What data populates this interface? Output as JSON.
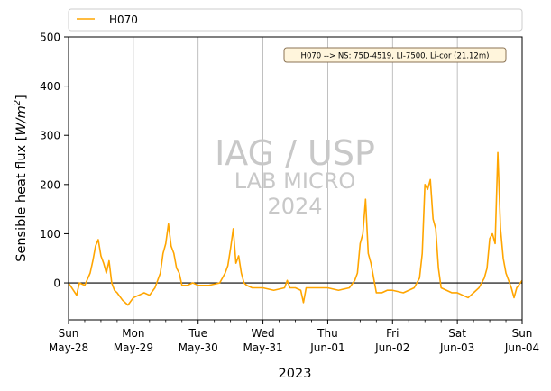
{
  "chart_data": {
    "type": "line",
    "xlabel": "2023",
    "ylabel": "Sensible heat flux [W/m²]",
    "ylabel_parts": {
      "text": "Sensible heat flux [",
      "unit_base": "W/m",
      "unit_exp": "2",
      "close": "]"
    },
    "ylim": [
      -75,
      500
    ],
    "yticks": [
      0,
      100,
      200,
      300,
      400,
      500
    ],
    "xlim": [
      "2023-05-28",
      "2023-06-04"
    ],
    "xticks": [
      {
        "day": "Sun",
        "date": "May-28"
      },
      {
        "day": "Mon",
        "date": "May-29"
      },
      {
        "day": "Tue",
        "date": "May-30"
      },
      {
        "day": "Wed",
        "date": "May-31"
      },
      {
        "day": "Thu",
        "date": "Jun-01"
      },
      {
        "day": "Fri",
        "date": "Jun-02"
      },
      {
        "day": "Sat",
        "date": "Jun-03"
      },
      {
        "day": "Sun",
        "date": "Jun-04"
      }
    ],
    "grid": "vertical",
    "legend_placement": "top",
    "annotation": "H070 --> NS: 75D-4519, LI-7500, Li-cor (21.12m)",
    "watermark": [
      "IAG / USP",
      "LAB MICRO",
      "2024"
    ],
    "colors": {
      "series": "#FFA500",
      "zero_line": "#000000",
      "grid": "#b0b0b0",
      "annot_bg": "#FFF5DC",
      "annot_border": "#8B7355",
      "watermark": "#c8c8c8"
    },
    "series": [
      {
        "name": "H070",
        "x": [
          "2023-05-28 00:00",
          "2023-05-28 03:00",
          "2023-05-28 04:00",
          "2023-05-28 06:00",
          "2023-05-28 08:00",
          "2023-05-28 09:00",
          "2023-05-28 10:00",
          "2023-05-28 11:00",
          "2023-05-28 12:00",
          "2023-05-28 13:00",
          "2023-05-28 14:00",
          "2023-05-28 15:00",
          "2023-05-28 16:00",
          "2023-05-28 17:00",
          "2023-05-28 18:00",
          "2023-05-28 20:00",
          "2023-05-28 22:00",
          "2023-05-29 00:00",
          "2023-05-29 02:00",
          "2023-05-29 04:00",
          "2023-05-29 06:00",
          "2023-05-29 08:00",
          "2023-05-29 10:00",
          "2023-05-29 11:00",
          "2023-05-29 12:00",
          "2023-05-29 13:00",
          "2023-05-29 14:00",
          "2023-05-29 15:00",
          "2023-05-29 16:00",
          "2023-05-29 17:00",
          "2023-05-29 18:00",
          "2023-05-29 20:00",
          "2023-05-29 22:00",
          "2023-05-30 00:00",
          "2023-05-30 04:00",
          "2023-05-30 08:00",
          "2023-05-30 10:00",
          "2023-05-30 11:00",
          "2023-05-30 12:00",
          "2023-05-30 13:00",
          "2023-05-30 14:00",
          "2023-05-30 15:00",
          "2023-05-30 16:00",
          "2023-05-30 17:00",
          "2023-05-30 18:00",
          "2023-05-30 20:00",
          "2023-05-30 22:00",
          "2023-05-31 00:00",
          "2023-05-31 04:00",
          "2023-05-31 08:00",
          "2023-05-31 09:00",
          "2023-05-31 10:00",
          "2023-05-31 12:00",
          "2023-05-31 14:00",
          "2023-05-31 15:00",
          "2023-05-31 16:00",
          "2023-05-31 18:00",
          "2023-05-31 20:00",
          "2023-05-31 22:00",
          "2023-06-01 00:00",
          "2023-06-01 04:00",
          "2023-06-01 08:00",
          "2023-06-01 10:00",
          "2023-06-01 11:00",
          "2023-06-01 12:00",
          "2023-06-01 13:00",
          "2023-06-01 14:00",
          "2023-06-01 15:00",
          "2023-06-01 16:00",
          "2023-06-01 17:00",
          "2023-06-01 18:00",
          "2023-06-01 20:00",
          "2023-06-01 22:00",
          "2023-06-02 00:00",
          "2023-06-02 04:00",
          "2023-06-02 08:00",
          "2023-06-02 10:00",
          "2023-06-02 11:00",
          "2023-06-02 12:00",
          "2023-06-02 13:00",
          "2023-06-02 14:00",
          "2023-06-02 15:00",
          "2023-06-02 16:00",
          "2023-06-02 17:00",
          "2023-06-02 18:00",
          "2023-06-02 20:00",
          "2023-06-02 22:00",
          "2023-06-03 00:00",
          "2023-06-03 04:00",
          "2023-06-03 08:00",
          "2023-06-03 10:00",
          "2023-06-03 11:00",
          "2023-06-03 12:00",
          "2023-06-03 13:00",
          "2023-06-03 14:00",
          "2023-06-03 15:00",
          "2023-06-03 16:00",
          "2023-06-03 17:00",
          "2023-06-03 18:00",
          "2023-06-03 20:00",
          "2023-06-03 21:00",
          "2023-06-03 22:00",
          "2023-06-04 00:00"
        ],
        "y": [
          0,
          -25,
          0,
          -5,
          20,
          45,
          75,
          88,
          55,
          40,
          20,
          45,
          0,
          -15,
          -20,
          -35,
          -45,
          -30,
          -25,
          -20,
          -25,
          -10,
          20,
          60,
          80,
          120,
          75,
          60,
          30,
          20,
          -5,
          -5,
          0,
          -5,
          -5,
          0,
          20,
          35,
          70,
          110,
          40,
          55,
          20,
          0,
          -5,
          -10,
          -10,
          -10,
          -15,
          -10,
          5,
          -10,
          -10,
          -15,
          -40,
          -10,
          -10,
          -10,
          -10,
          -10,
          -15,
          -10,
          5,
          20,
          80,
          100,
          170,
          60,
          40,
          10,
          -20,
          -20,
          -15,
          -15,
          -20,
          -10,
          10,
          60,
          200,
          190,
          210,
          130,
          110,
          30,
          -10,
          -15,
          -20,
          -20,
          -30,
          -10,
          10,
          30,
          90,
          100,
          80,
          265,
          110,
          50,
          20,
          -10,
          -30,
          -10,
          5
        ]
      }
    ]
  }
}
